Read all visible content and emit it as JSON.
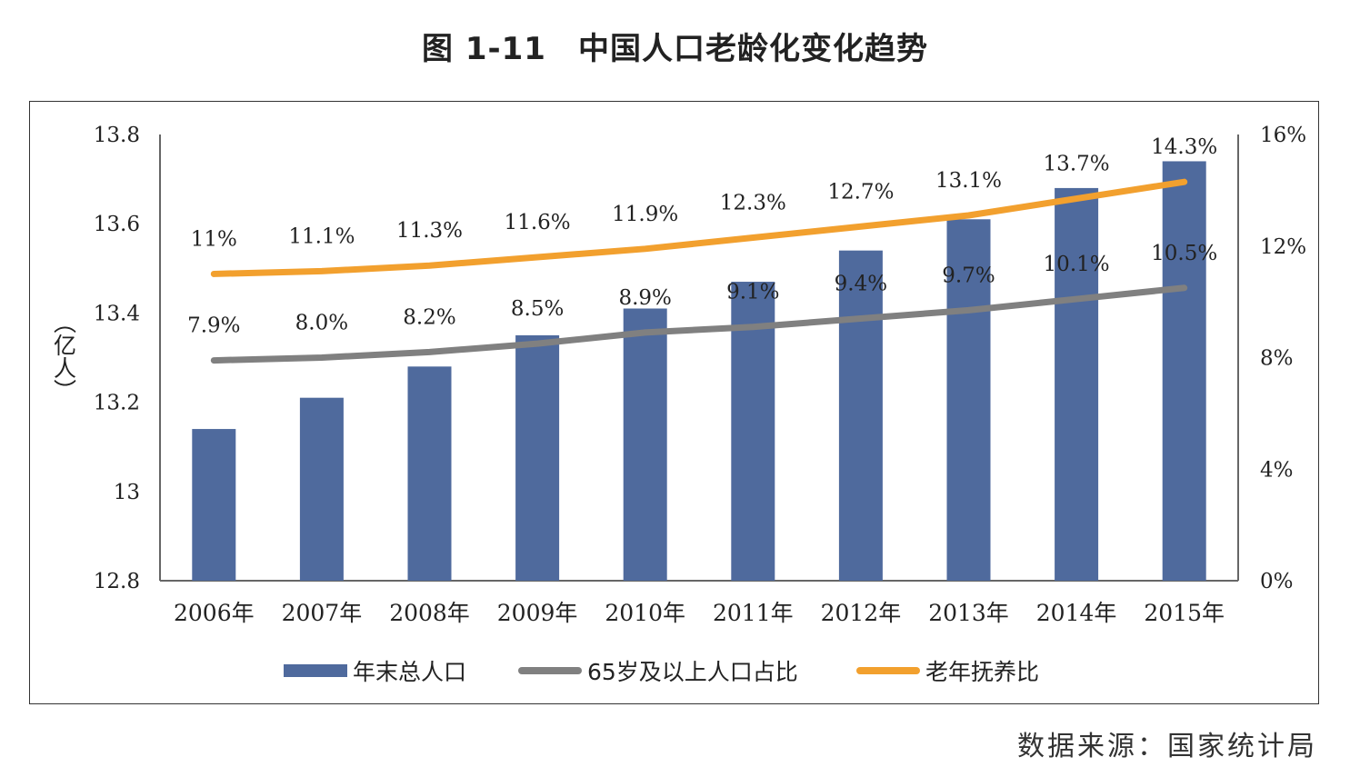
{
  "title": "图 1-11　中国人口老龄化变化趋势",
  "source": "数据来源：国家统计局",
  "colors": {
    "bar": "#4f6a9d",
    "elderly_share": "#808080",
    "dependency": "#f2a02e",
    "axis": "#666666"
  },
  "chart_data": {
    "type": "bar",
    "categories": [
      "2006年",
      "2007年",
      "2008年",
      "2009年",
      "2010年",
      "2011年",
      "2012年",
      "2013年",
      "2014年",
      "2015年"
    ],
    "series": [
      {
        "name": "年末总人口",
        "type": "bar",
        "axis": "left",
        "values": [
          13.14,
          13.21,
          13.28,
          13.35,
          13.41,
          13.47,
          13.54,
          13.61,
          13.68,
          13.74
        ]
      },
      {
        "name": "65岁及以上人口占比",
        "type": "line",
        "axis": "right",
        "values": [
          7.9,
          8.0,
          8.2,
          8.5,
          8.9,
          9.1,
          9.4,
          9.7,
          10.1,
          10.5
        ],
        "labels": [
          "7.9%",
          "8.0%",
          "8.2%",
          "8.5%",
          "8.9%",
          "9.1%",
          "9.4%",
          "9.7%",
          "10.1%",
          "10.5%"
        ]
      },
      {
        "name": "老年抚养比",
        "type": "line",
        "axis": "right",
        "values": [
          11.0,
          11.1,
          11.3,
          11.6,
          11.9,
          12.3,
          12.7,
          13.1,
          13.7,
          14.3
        ],
        "labels": [
          "11%",
          "11.1%",
          "11.3%",
          "11.6%",
          "11.9%",
          "12.3%",
          "12.7%",
          "13.1%",
          "13.7%",
          "14.3%"
        ]
      }
    ],
    "ylabel": "（亿人）",
    "ylim": [
      12.8,
      13.8
    ],
    "yticks": [
      "13.8",
      "13.6",
      "13.4",
      "13.2",
      "13",
      "12.8"
    ],
    "y2lim": [
      0,
      16
    ],
    "y2ticks": [
      "16%",
      "12%",
      "8%",
      "4%",
      "0%"
    ],
    "legend": [
      "年末总人口",
      "65岁及以上人口占比",
      "老年抚养比"
    ],
    "legend_position": "bottom",
    "grid": false
  }
}
